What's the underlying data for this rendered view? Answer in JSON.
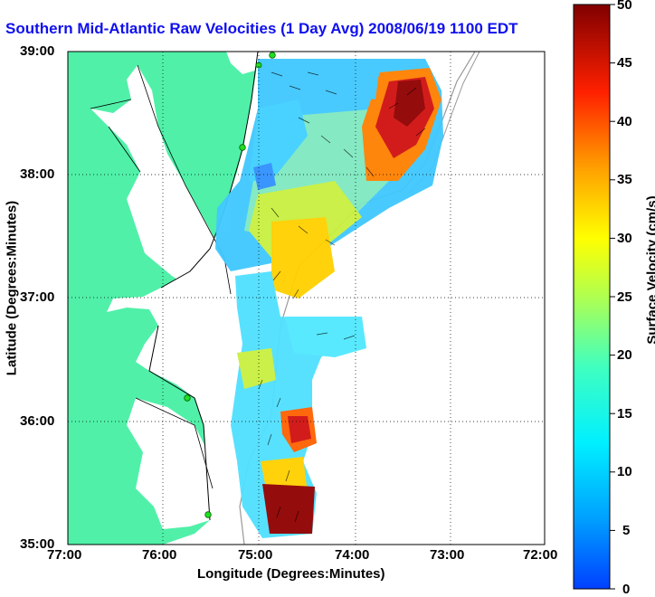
{
  "title": "Southern Mid-Atlantic Raw Velocities (1 Day Avg) 2008/06/19 1100 EDT",
  "map": {
    "xlabel": "Longitude (Degrees:Minutes)",
    "ylabel": "Latitude (Degrees:Minutes)",
    "x_ticks": [
      "77:00",
      "76:00",
      "75:00",
      "74:00",
      "73:00",
      "72:00"
    ],
    "y_ticks": [
      "39:00",
      "38:00",
      "37:00",
      "36:00",
      "35:00"
    ],
    "grid": "dotted",
    "land_color": "#50f0a8",
    "ocean_color": "#ffffff",
    "station_color": "#22dd22",
    "station_count": 5
  },
  "colorbar": {
    "label": "Surface Velocity (cm/s)",
    "ticks": [
      "50",
      "45",
      "40",
      "35",
      "30",
      "25",
      "20",
      "15",
      "10",
      "5",
      "0"
    ],
    "colormap": "jet"
  }
}
